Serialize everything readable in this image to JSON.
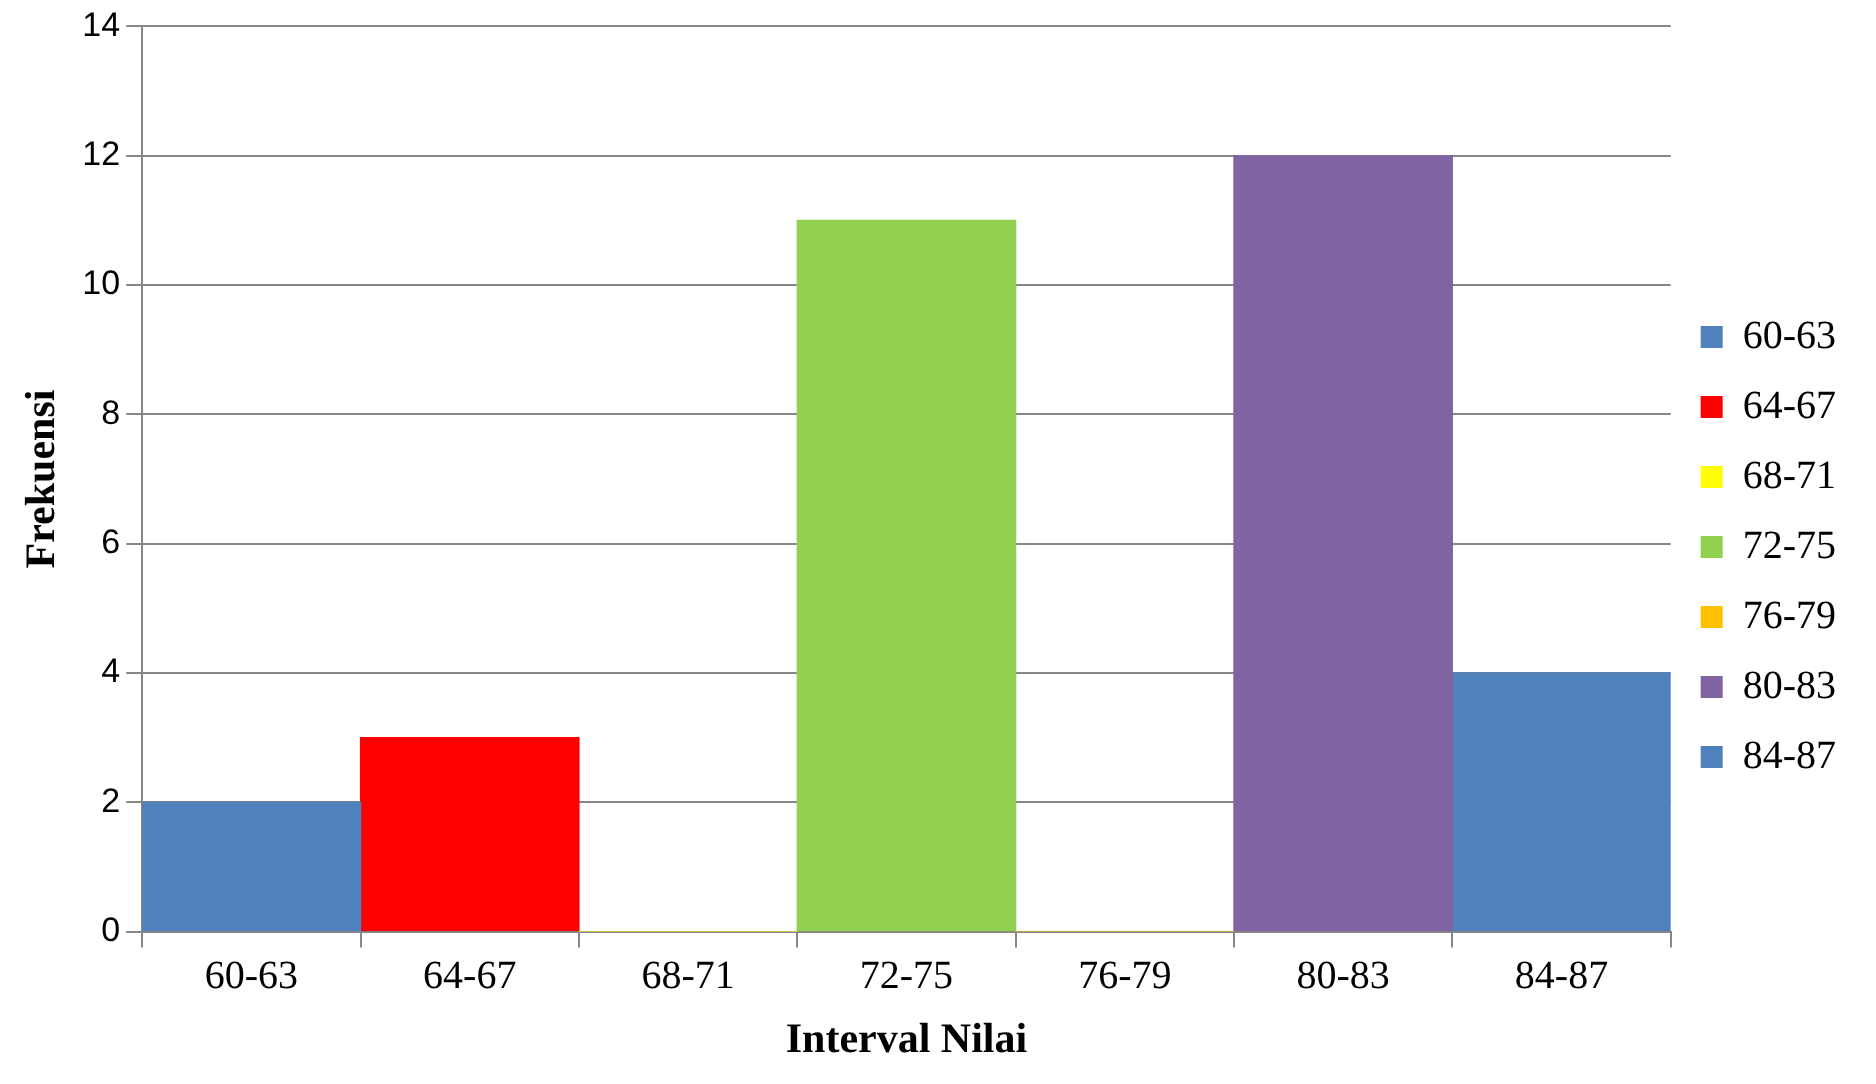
{
  "chart_data": {
    "type": "bar",
    "xlabel": "Interval Nilai",
    "ylabel": "Frekuensi",
    "categories": [
      "60-63",
      "64-67",
      "68-71",
      "72-75",
      "76-79",
      "80-83",
      "84-87"
    ],
    "series": [
      {
        "name": "60-63",
        "color": "#4f81bd",
        "values": [
          2,
          null,
          null,
          null,
          null,
          null,
          null
        ]
      },
      {
        "name": "64-67",
        "color": "#ff0000",
        "values": [
          null,
          3,
          null,
          null,
          null,
          null,
          null
        ]
      },
      {
        "name": "68-71",
        "color": "#ffff00",
        "values": [
          null,
          null,
          0,
          null,
          null,
          null,
          null
        ]
      },
      {
        "name": "72-75",
        "color": "#92d050",
        "values": [
          null,
          null,
          null,
          11,
          null,
          null,
          null
        ]
      },
      {
        "name": "76-79",
        "color": "#ffc000",
        "values": [
          null,
          null,
          null,
          null,
          0,
          null,
          null
        ]
      },
      {
        "name": "80-83",
        "color": "#8064a2",
        "values": [
          null,
          null,
          null,
          null,
          null,
          12,
          null
        ]
      },
      {
        "name": "84-87",
        "color": "#4f81bd",
        "values": [
          null,
          null,
          null,
          null,
          null,
          null,
          4
        ]
      }
    ],
    "ylim": [
      0,
      14
    ],
    "yticks": [
      0,
      2,
      4,
      6,
      8,
      10,
      12,
      14
    ],
    "grid": "y",
    "legend": "right"
  }
}
